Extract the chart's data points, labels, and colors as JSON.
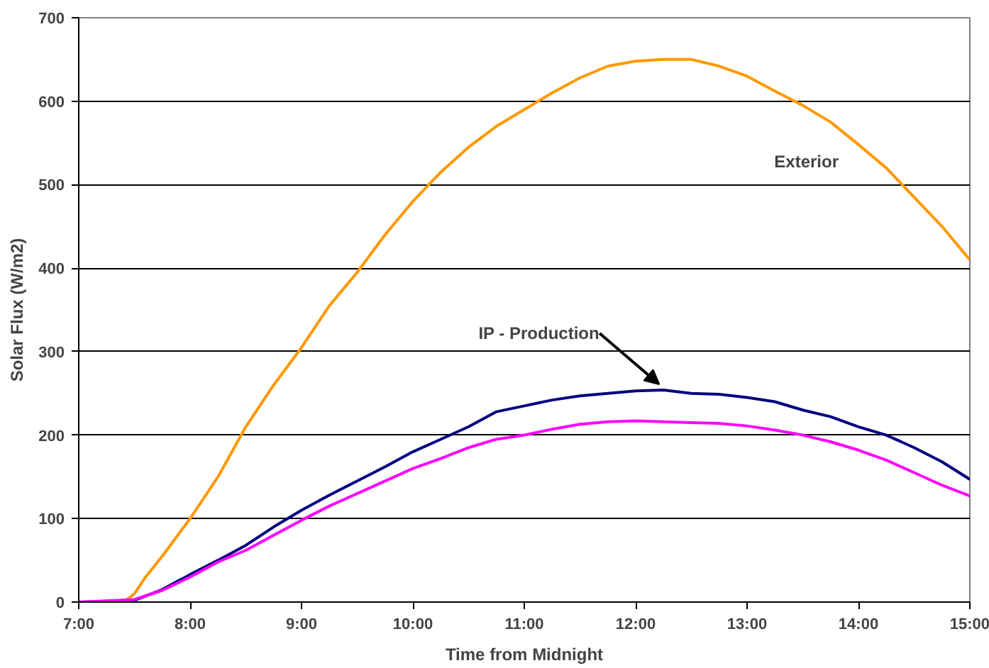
{
  "chart_data": {
    "type": "line",
    "xlabel": "Time from Midnight",
    "ylabel": "Solar Flux (W/m2)",
    "xlim": [
      7,
      15
    ],
    "ylim": [
      0,
      700
    ],
    "xticks": [
      {
        "value": 7,
        "label": "7:00"
      },
      {
        "value": 8,
        "label": "8:00"
      },
      {
        "value": 9,
        "label": "9:00"
      },
      {
        "value": 10,
        "label": "10:00"
      },
      {
        "value": 11,
        "label": "11:00"
      },
      {
        "value": 12,
        "label": "12:00"
      },
      {
        "value": 13,
        "label": "13:00"
      },
      {
        "value": 14,
        "label": "14:00"
      },
      {
        "value": 15,
        "label": "15:00"
      }
    ],
    "yticks": [
      0,
      100,
      200,
      300,
      400,
      500,
      600,
      700
    ],
    "grid": "y",
    "series": [
      {
        "name": "Exterior",
        "color": "#ff9900",
        "x": [
          7,
          7.4,
          7.5,
          7.6,
          7.75,
          8,
          8.25,
          8.5,
          8.75,
          9,
          9.25,
          9.5,
          9.75,
          10,
          10.25,
          10.5,
          10.75,
          11,
          11.25,
          11.5,
          11.75,
          12,
          12.25,
          12.5,
          12.75,
          13,
          13.25,
          13.5,
          13.75,
          14,
          14.25,
          14.5,
          14.75,
          15
        ],
        "values": [
          0,
          0,
          10,
          30,
          55,
          100,
          150,
          210,
          260,
          305,
          355,
          395,
          440,
          480,
          515,
          545,
          570,
          590,
          610,
          628,
          642,
          648,
          650,
          650,
          642,
          630,
          612,
          595,
          575,
          548,
          520,
          485,
          450,
          410
        ]
      },
      {
        "name": "IP - Production",
        "color": "#000080",
        "x": [
          7,
          7.5,
          7.75,
          8,
          8.25,
          8.5,
          8.75,
          9,
          9.25,
          9.5,
          9.75,
          10,
          10.25,
          10.5,
          10.75,
          11,
          11.25,
          11.5,
          11.75,
          12,
          12.25,
          12.5,
          12.75,
          13,
          13.25,
          13.5,
          13.75,
          14,
          14.25,
          14.5,
          14.75,
          15
        ],
        "values": [
          0,
          2,
          15,
          33,
          50,
          68,
          90,
          110,
          128,
          145,
          162,
          180,
          195,
          210,
          228,
          235,
          242,
          247,
          250,
          253,
          254,
          250,
          249,
          245,
          240,
          230,
          222,
          210,
          200,
          185,
          168,
          147
        ]
      },
      {
        "color": "#ff00ff",
        "x": [
          7,
          7.5,
          7.75,
          8,
          8.25,
          8.5,
          8.75,
          9,
          9.25,
          9.5,
          9.75,
          10,
          10.25,
          10.5,
          10.75,
          11,
          11.25,
          11.5,
          11.75,
          12,
          12.25,
          12.5,
          12.75,
          13,
          13.25,
          13.5,
          13.75,
          14,
          14.25,
          14.5,
          14.75,
          15
        ],
        "values": [
          0,
          3,
          14,
          30,
          48,
          62,
          80,
          98,
          115,
          130,
          145,
          160,
          172,
          185,
          195,
          200,
          207,
          213,
          216,
          217,
          216,
          215,
          214,
          211,
          206,
          200,
          192,
          182,
          170,
          155,
          140,
          127
        ]
      }
    ]
  }
}
